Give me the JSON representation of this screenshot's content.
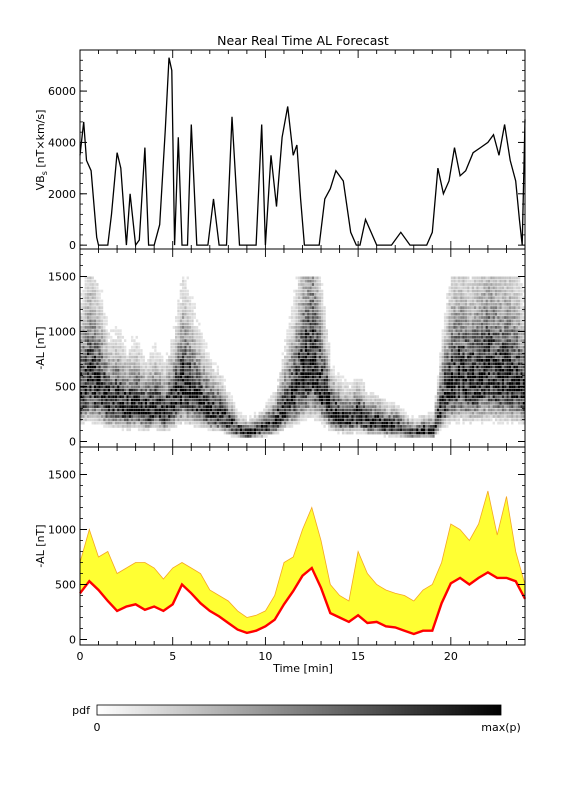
{
  "title": "Near Real Time AL Forecast",
  "colors": {
    "vbs_line": "#000000",
    "median_line": "#ff0000",
    "band_fill": "#ffff33",
    "band_edge": "#f5a623"
  },
  "chart_data": [
    {
      "type": "line",
      "panel": "top",
      "ylabel": "VB$_s$ [nT×km/s]",
      "ylabel_main": "VB",
      "ylabel_sub": "s",
      "ylabel_rest": " [nT×km/s]",
      "xlim": [
        0,
        24
      ],
      "ylim": [
        -150,
        7600
      ],
      "yticks": [
        0,
        2000,
        4000,
        6000
      ],
      "ytick_labels": [
        "0",
        "2000",
        "4000",
        "6000"
      ],
      "series": [
        {
          "x": [
            0,
            0.2,
            0.35,
            0.6,
            0.9,
            1.0,
            1.2,
            1.5,
            1.7,
            2.0,
            2.2,
            2.5,
            2.7,
            3.0,
            3.2,
            3.5,
            3.7,
            4.0,
            4.3,
            4.6,
            4.8,
            4.95,
            5.1,
            5.3,
            5.5,
            5.8,
            6.0,
            6.3,
            6.6,
            6.9,
            7.2,
            7.5,
            7.9,
            8.2,
            8.6,
            8.9,
            9.2,
            9.5,
            9.8,
            10.0,
            10.3,
            10.6,
            10.9,
            11.2,
            11.5,
            11.7,
            11.9,
            12.1,
            12.3,
            12.6,
            12.9,
            13.2,
            13.5,
            13.8,
            14.2,
            14.6,
            14.9,
            15.1,
            15.4,
            15.7,
            16.0,
            16.4,
            16.8,
            17.3,
            17.8,
            18.3,
            18.7,
            19.0,
            19.3,
            19.6,
            19.9,
            20.2,
            20.5,
            20.8,
            21.2,
            21.6,
            22.0,
            22.3,
            22.6,
            22.9,
            23.2,
            23.5,
            23.7,
            23.85,
            24.0
          ],
          "y": [
            3500,
            4800,
            3300,
            2900,
            300,
            0,
            0,
            0,
            1200,
            3600,
            3000,
            0,
            2000,
            0,
            200,
            3800,
            0,
            0,
            800,
            4500,
            7300,
            6800,
            0,
            4200,
            0,
            0,
            4700,
            0,
            0,
            0,
            1800,
            0,
            0,
            5000,
            0,
            0,
            0,
            0,
            4700,
            0,
            3500,
            1500,
            4200,
            5400,
            3500,
            3900,
            1800,
            0,
            0,
            0,
            0,
            1800,
            2200,
            2900,
            2500,
            500,
            0,
            0,
            1000,
            500,
            0,
            0,
            0,
            500,
            0,
            0,
            0,
            500,
            3000,
            2000,
            2500,
            3800,
            2700,
            2900,
            3600,
            3800,
            4000,
            4300,
            3500,
            4700,
            3300,
            2500,
            1000,
            0,
            4900
          ]
        }
      ]
    },
    {
      "type": "heatmap",
      "panel": "middle",
      "ylabel": "-AL [nT]",
      "xlim": [
        0,
        24
      ],
      "ylim": [
        -50,
        1750
      ],
      "yticks": [
        0,
        500,
        1000,
        1500
      ],
      "ytick_labels": [
        "0",
        "500",
        "1000",
        "1500"
      ],
      "peak_curve": {
        "x": [
          0,
          0.5,
          1.0,
          1.5,
          2.0,
          2.5,
          3.0,
          3.5,
          4.0,
          4.5,
          5.0,
          5.5,
          6.0,
          6.5,
          7.0,
          7.5,
          8.0,
          8.5,
          9.0,
          9.5,
          10.0,
          10.5,
          11.0,
          11.5,
          12.0,
          12.5,
          13.0,
          13.5,
          14.0,
          14.5,
          15.0,
          15.5,
          16.0,
          16.5,
          17.0,
          17.5,
          18.0,
          18.5,
          19.0,
          19.5,
          20.0,
          20.5,
          21.0,
          21.5,
          22.0,
          22.5,
          23.0,
          23.5,
          24.0
        ],
        "y": [
          420,
          560,
          460,
          330,
          350,
          290,
          320,
          260,
          300,
          250,
          340,
          500,
          420,
          330,
          260,
          220,
          150,
          80,
          60,
          80,
          120,
          160,
          300,
          420,
          600,
          700,
          460,
          250,
          200,
          180,
          220,
          150,
          160,
          120,
          120,
          80,
          60,
          80,
          80,
          340,
          530,
          560,
          520,
          560,
          620,
          560,
          560,
          520,
          400
        ]
      },
      "spread": 0.55
    },
    {
      "type": "area",
      "panel": "bottom",
      "ylabel": "-AL [nT]",
      "xlabel": "Time [min]",
      "xlim": [
        0,
        24
      ],
      "ylim": [
        -50,
        1750
      ],
      "xticks": [
        0,
        5,
        10,
        15,
        20
      ],
      "xtick_labels": [
        "0",
        "5",
        "10",
        "15",
        "20"
      ],
      "yticks": [
        0,
        500,
        1000,
        1500
      ],
      "ytick_labels": [
        "0",
        "500",
        "1000",
        "1500"
      ],
      "series": [
        {
          "name": "median",
          "x": [
            0,
            0.5,
            1.0,
            1.5,
            2.0,
            2.5,
            3.0,
            3.5,
            4.0,
            4.5,
            5.0,
            5.5,
            6.0,
            6.5,
            7.0,
            7.5,
            8.0,
            8.5,
            9.0,
            9.5,
            10.0,
            10.5,
            11.0,
            11.5,
            12.0,
            12.5,
            13.0,
            13.5,
            14.0,
            14.5,
            15.0,
            15.5,
            16.0,
            16.5,
            17.0,
            17.5,
            18.0,
            18.5,
            19.0,
            19.5,
            20.0,
            20.5,
            21.0,
            21.5,
            22.0,
            22.5,
            23.0,
            23.5,
            24.0
          ],
          "y": [
            420,
            530,
            450,
            350,
            260,
            300,
            320,
            270,
            300,
            260,
            320,
            500,
            420,
            330,
            260,
            210,
            150,
            90,
            60,
            80,
            120,
            180,
            320,
            440,
            580,
            650,
            470,
            240,
            200,
            160,
            220,
            150,
            160,
            120,
            110,
            80,
            50,
            80,
            80,
            330,
            510,
            560,
            500,
            560,
            610,
            560,
            560,
            530,
            370
          ]
        },
        {
          "name": "upper",
          "x": [
            0,
            0.5,
            1.0,
            1.5,
            2.0,
            2.5,
            3.0,
            3.5,
            4.0,
            4.5,
            5.0,
            5.5,
            6.0,
            6.5,
            7.0,
            7.5,
            8.0,
            8.5,
            9.0,
            9.5,
            10.0,
            10.5,
            11.0,
            11.5,
            12.0,
            12.5,
            13.0,
            13.5,
            14.0,
            14.5,
            15.0,
            15.5,
            16.0,
            16.5,
            17.0,
            17.5,
            18.0,
            18.5,
            19.0,
            19.5,
            20.0,
            20.5,
            21.0,
            21.5,
            22.0,
            22.5,
            23.0,
            23.5,
            24.0
          ],
          "y": [
            700,
            1000,
            750,
            800,
            600,
            650,
            700,
            700,
            650,
            550,
            650,
            700,
            650,
            600,
            450,
            400,
            350,
            260,
            200,
            220,
            260,
            400,
            700,
            750,
            1000,
            1200,
            900,
            500,
            400,
            350,
            800,
            600,
            500,
            450,
            420,
            400,
            350,
            450,
            500,
            700,
            1050,
            1000,
            900,
            1050,
            1350,
            950,
            1300,
            800,
            500
          ]
        }
      ]
    }
  ],
  "colorbar": {
    "label": "pdf",
    "min_label": "0",
    "max_label": "max(p)"
  }
}
